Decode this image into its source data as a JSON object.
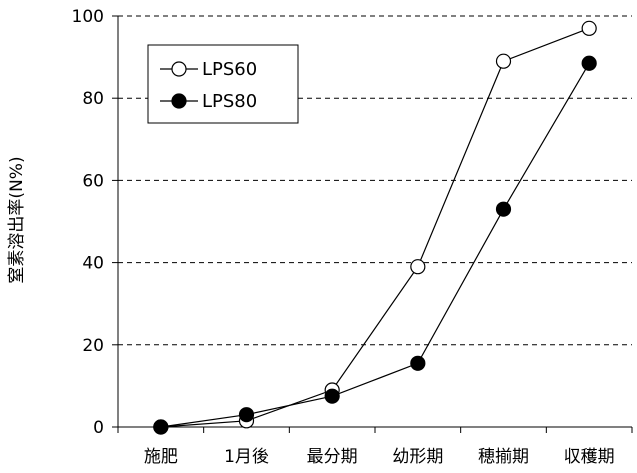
{
  "chart_data": {
    "type": "line",
    "title": "",
    "xlabel": "",
    "ylabel": "窒素溶出率(N%)",
    "categories": [
      "施肥",
      "1月後",
      "最分期",
      "幼形期",
      "穂揃期",
      "収穫期"
    ],
    "ylim": [
      0,
      100
    ],
    "yticks": [
      "0",
      "20",
      "40",
      "60",
      "80",
      "100"
    ],
    "grid": "horizontal dashed",
    "legend_position": "top-left",
    "series": [
      {
        "name": "LPS60",
        "marker": "open-circle",
        "values": [
          0,
          1.5,
          9,
          39,
          89,
          97
        ]
      },
      {
        "name": "LPS80",
        "marker": "filled-circle",
        "values": [
          0,
          3,
          7.5,
          15.5,
          53,
          88.5
        ]
      }
    ]
  }
}
